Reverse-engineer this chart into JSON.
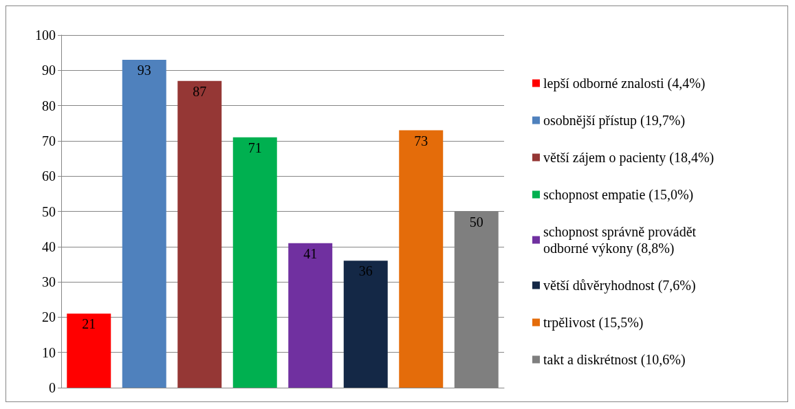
{
  "chart_data": {
    "type": "bar",
    "categories": [
      null,
      null,
      null,
      null,
      null,
      null,
      null,
      null
    ],
    "series": [
      {
        "name": "lepší odborné znalosti (4,4%)",
        "color": "#ff0000",
        "values": [
          21,
          null,
          null,
          null,
          null,
          null,
          null,
          null
        ]
      },
      {
        "name": "osobnější přístup (19,7%)",
        "color": "#4f81bd",
        "values": [
          null,
          93,
          null,
          null,
          null,
          null,
          null,
          null
        ]
      },
      {
        "name": "větší zájem o pacienty (18,4%)",
        "color": "#953735",
        "values": [
          null,
          null,
          87,
          null,
          null,
          null,
          null,
          null
        ]
      },
      {
        "name": "schopnost empatie (15,0%)",
        "color": "#00b050",
        "values": [
          null,
          null,
          null,
          71,
          null,
          null,
          null,
          null
        ]
      },
      {
        "name": "schopnost správně provádět odborné výkony (8,8%)",
        "color": "#7030a0",
        "values": [
          null,
          null,
          null,
          null,
          41,
          null,
          null,
          null
        ]
      },
      {
        "name": "větší důvěryhodnost (7,6%)",
        "color": "#142846",
        "values": [
          null,
          null,
          null,
          null,
          null,
          36,
          null,
          null
        ]
      },
      {
        "name": "trpělivost (15,5%)",
        "color": "#e46c0a",
        "values": [
          null,
          null,
          null,
          null,
          null,
          null,
          73,
          null
        ]
      },
      {
        "name": "takt a diskrétnost (10,6%)",
        "color": "#7f7f7f",
        "values": [
          null,
          null,
          null,
          null,
          null,
          null,
          null,
          50
        ]
      }
    ],
    "ylim": [
      0,
      100
    ],
    "yticks": [
      0,
      10,
      20,
      30,
      40,
      50,
      60,
      70,
      80,
      90,
      100
    ],
    "grid": "y",
    "legend": "right",
    "data_labels": true
  }
}
